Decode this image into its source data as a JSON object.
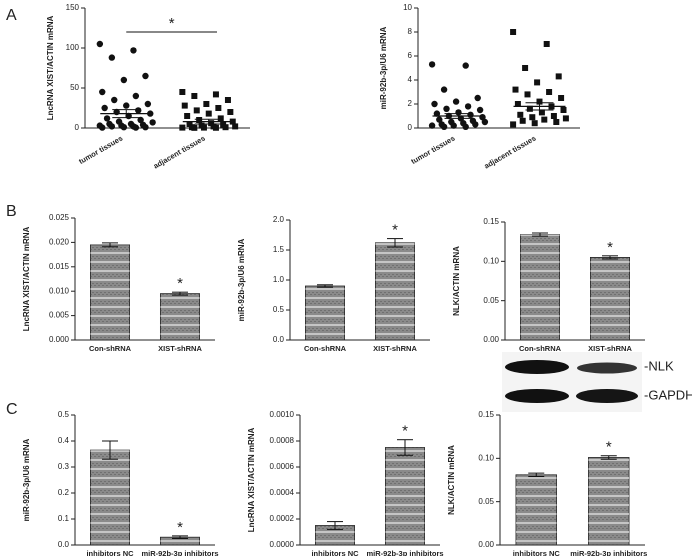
{
  "panels": [
    "A",
    "B",
    "C"
  ],
  "blot": {
    "labels": [
      "-NLK",
      "-GAPDH"
    ]
  },
  "chart_data": [
    {
      "type": "scatter",
      "y_label": "LncRNA XIST/ACTIN mRNA",
      "categories": [
        "tumor tissues",
        "adjacent tissues"
      ],
      "markers": [
        "circle",
        "square"
      ],
      "color": "#111",
      "values": [
        [
          105,
          97,
          88,
          65,
          60,
          45,
          40,
          35,
          30,
          28,
          25,
          22,
          20,
          18,
          15,
          12,
          10,
          8,
          7,
          5,
          5,
          4,
          3,
          3,
          2,
          2,
          1,
          1,
          0.5,
          0.5
        ],
        [
          45,
          42,
          40,
          35,
          30,
          28,
          25,
          22,
          20,
          18,
          15,
          12,
          10,
          8,
          6,
          5,
          4,
          3,
          2,
          2,
          1,
          1,
          0.5,
          0.5,
          0.3,
          0.2
        ]
      ],
      "means": [
        18,
        8
      ],
      "errors": [
        5,
        3
      ],
      "ylim": [
        0,
        150
      ],
      "yticks": [
        0,
        50,
        100,
        150
      ],
      "annotation": "*"
    },
    {
      "type": "scatter",
      "y_label": "miR-92b-3p/U6 mRNA",
      "categories": [
        "tumor tissues",
        "adjacent tissues"
      ],
      "markers": [
        "circle",
        "square"
      ],
      "color": "#111",
      "values": [
        [
          5.3,
          5.2,
          3.2,
          2.5,
          2.2,
          2.0,
          1.8,
          1.6,
          1.5,
          1.3,
          1.2,
          1.1,
          1.0,
          0.9,
          0.8,
          0.7,
          0.6,
          0.5,
          0.5,
          0.4,
          0.3,
          0.3,
          0.2,
          0.2,
          0.1,
          0.1
        ],
        [
          8.0,
          7.0,
          5.0,
          4.3,
          3.8,
          3.2,
          3.0,
          2.8,
          2.5,
          2.2,
          2.0,
          1.8,
          1.6,
          1.5,
          1.3,
          1.1,
          1.0,
          0.9,
          0.8,
          0.7,
          0.6,
          0.5,
          0.4,
          0.3
        ]
      ],
      "means": [
        1.0,
        1.8
      ],
      "errors": [
        0.2,
        0.3
      ],
      "ylim": [
        0,
        10
      ],
      "yticks": [
        0,
        2,
        4,
        6,
        8,
        10
      ]
    },
    {
      "type": "bar",
      "y_label": "LncRNA XIST/ACTIN mRNA",
      "categories": [
        "Con-shRNA",
        "XIST-shRNA"
      ],
      "color": "#8a8a8a",
      "values": [
        0.0195,
        0.0095
      ],
      "errors": [
        0.0004,
        0.0003
      ],
      "ylim": [
        0,
        0.025
      ],
      "yticks": [
        {
          "value": 0,
          "label": "0.000"
        },
        0.005,
        {
          "value": 0.01,
          "label": "0.010"
        },
        0.015,
        {
          "value": 0.02,
          "label": "0.020"
        },
        0.025
      ],
      "annotation": "*"
    },
    {
      "type": "bar",
      "y_label": "miR-92b-3p/U6 mRNA",
      "categories": [
        "Con-shRNA",
        "XIST-shRNA"
      ],
      "color": "#8a8a8a",
      "values": [
        0.9,
        1.62
      ],
      "errors": [
        0.02,
        0.07
      ],
      "ylim": [
        0,
        2
      ],
      "yticks": [
        {
          "value": 0,
          "label": "0.0"
        },
        0.5,
        {
          "value": 1,
          "label": "1.0"
        },
        1.5,
        {
          "value": 2,
          "label": "2.0"
        }
      ],
      "annotation": "*"
    },
    {
      "type": "bar",
      "y_label": "NLK/ACTIN mRNA",
      "categories": [
        "Con-shRNA",
        "XIST-shRNA"
      ],
      "color": "#8a8a8a",
      "values": [
        0.134,
        0.105
      ],
      "errors": [
        0.002,
        0.002
      ],
      "ylim": [
        0,
        0.15
      ],
      "yticks": [
        {
          "value": 0,
          "label": "0.00"
        },
        0.05,
        {
          "value": 0.1,
          "label": "0.10"
        },
        0.15
      ],
      "annotation": "*"
    },
    {
      "type": "bar",
      "y_label": "miR-92b-3p/U6 mRNA",
      "categories": [
        "inhibitors NC",
        "miR-92b-3p inhibitors"
      ],
      "color": "#8a8a8a",
      "values": [
        0.365,
        0.03
      ],
      "errors": [
        0.035,
        0.005
      ],
      "ylim": [
        0,
        0.5
      ],
      "yticks": [
        {
          "value": 0,
          "label": "0.0"
        },
        0.1,
        0.2,
        0.3,
        0.4,
        0.5
      ],
      "annotation": "*"
    },
    {
      "type": "bar",
      "y_label": "LncRNA XIST/ACTIN mRNA",
      "categories": [
        "inhibitors NC",
        "miR-92b-3p inhibitors"
      ],
      "color": "#8a8a8a",
      "values": [
        0.00015,
        0.00075
      ],
      "errors": [
        3e-05,
        6e-05
      ],
      "ylim": [
        0,
        0.001
      ],
      "yticks": [
        {
          "value": 0,
          "label": "0.0000"
        },
        0.0002,
        0.0004,
        0.0006,
        0.0008,
        {
          "value": 0.001,
          "label": "0.0010"
        }
      ],
      "annotation": "*"
    },
    {
      "type": "bar",
      "y_label": "NLK/ACTIN mRNA",
      "categories": [
        "inhibitors NC",
        "miR-92b-3p inhibitors"
      ],
      "color": "#8a8a8a",
      "values": [
        0.081,
        0.101
      ],
      "errors": [
        0.002,
        0.002
      ],
      "ylim": [
        0,
        0.15
      ],
      "yticks": [
        {
          "value": 0,
          "label": "0.00"
        },
        0.05,
        {
          "value": 0.1,
          "label": "0.10"
        },
        0.15
      ],
      "annotation": "*"
    }
  ]
}
